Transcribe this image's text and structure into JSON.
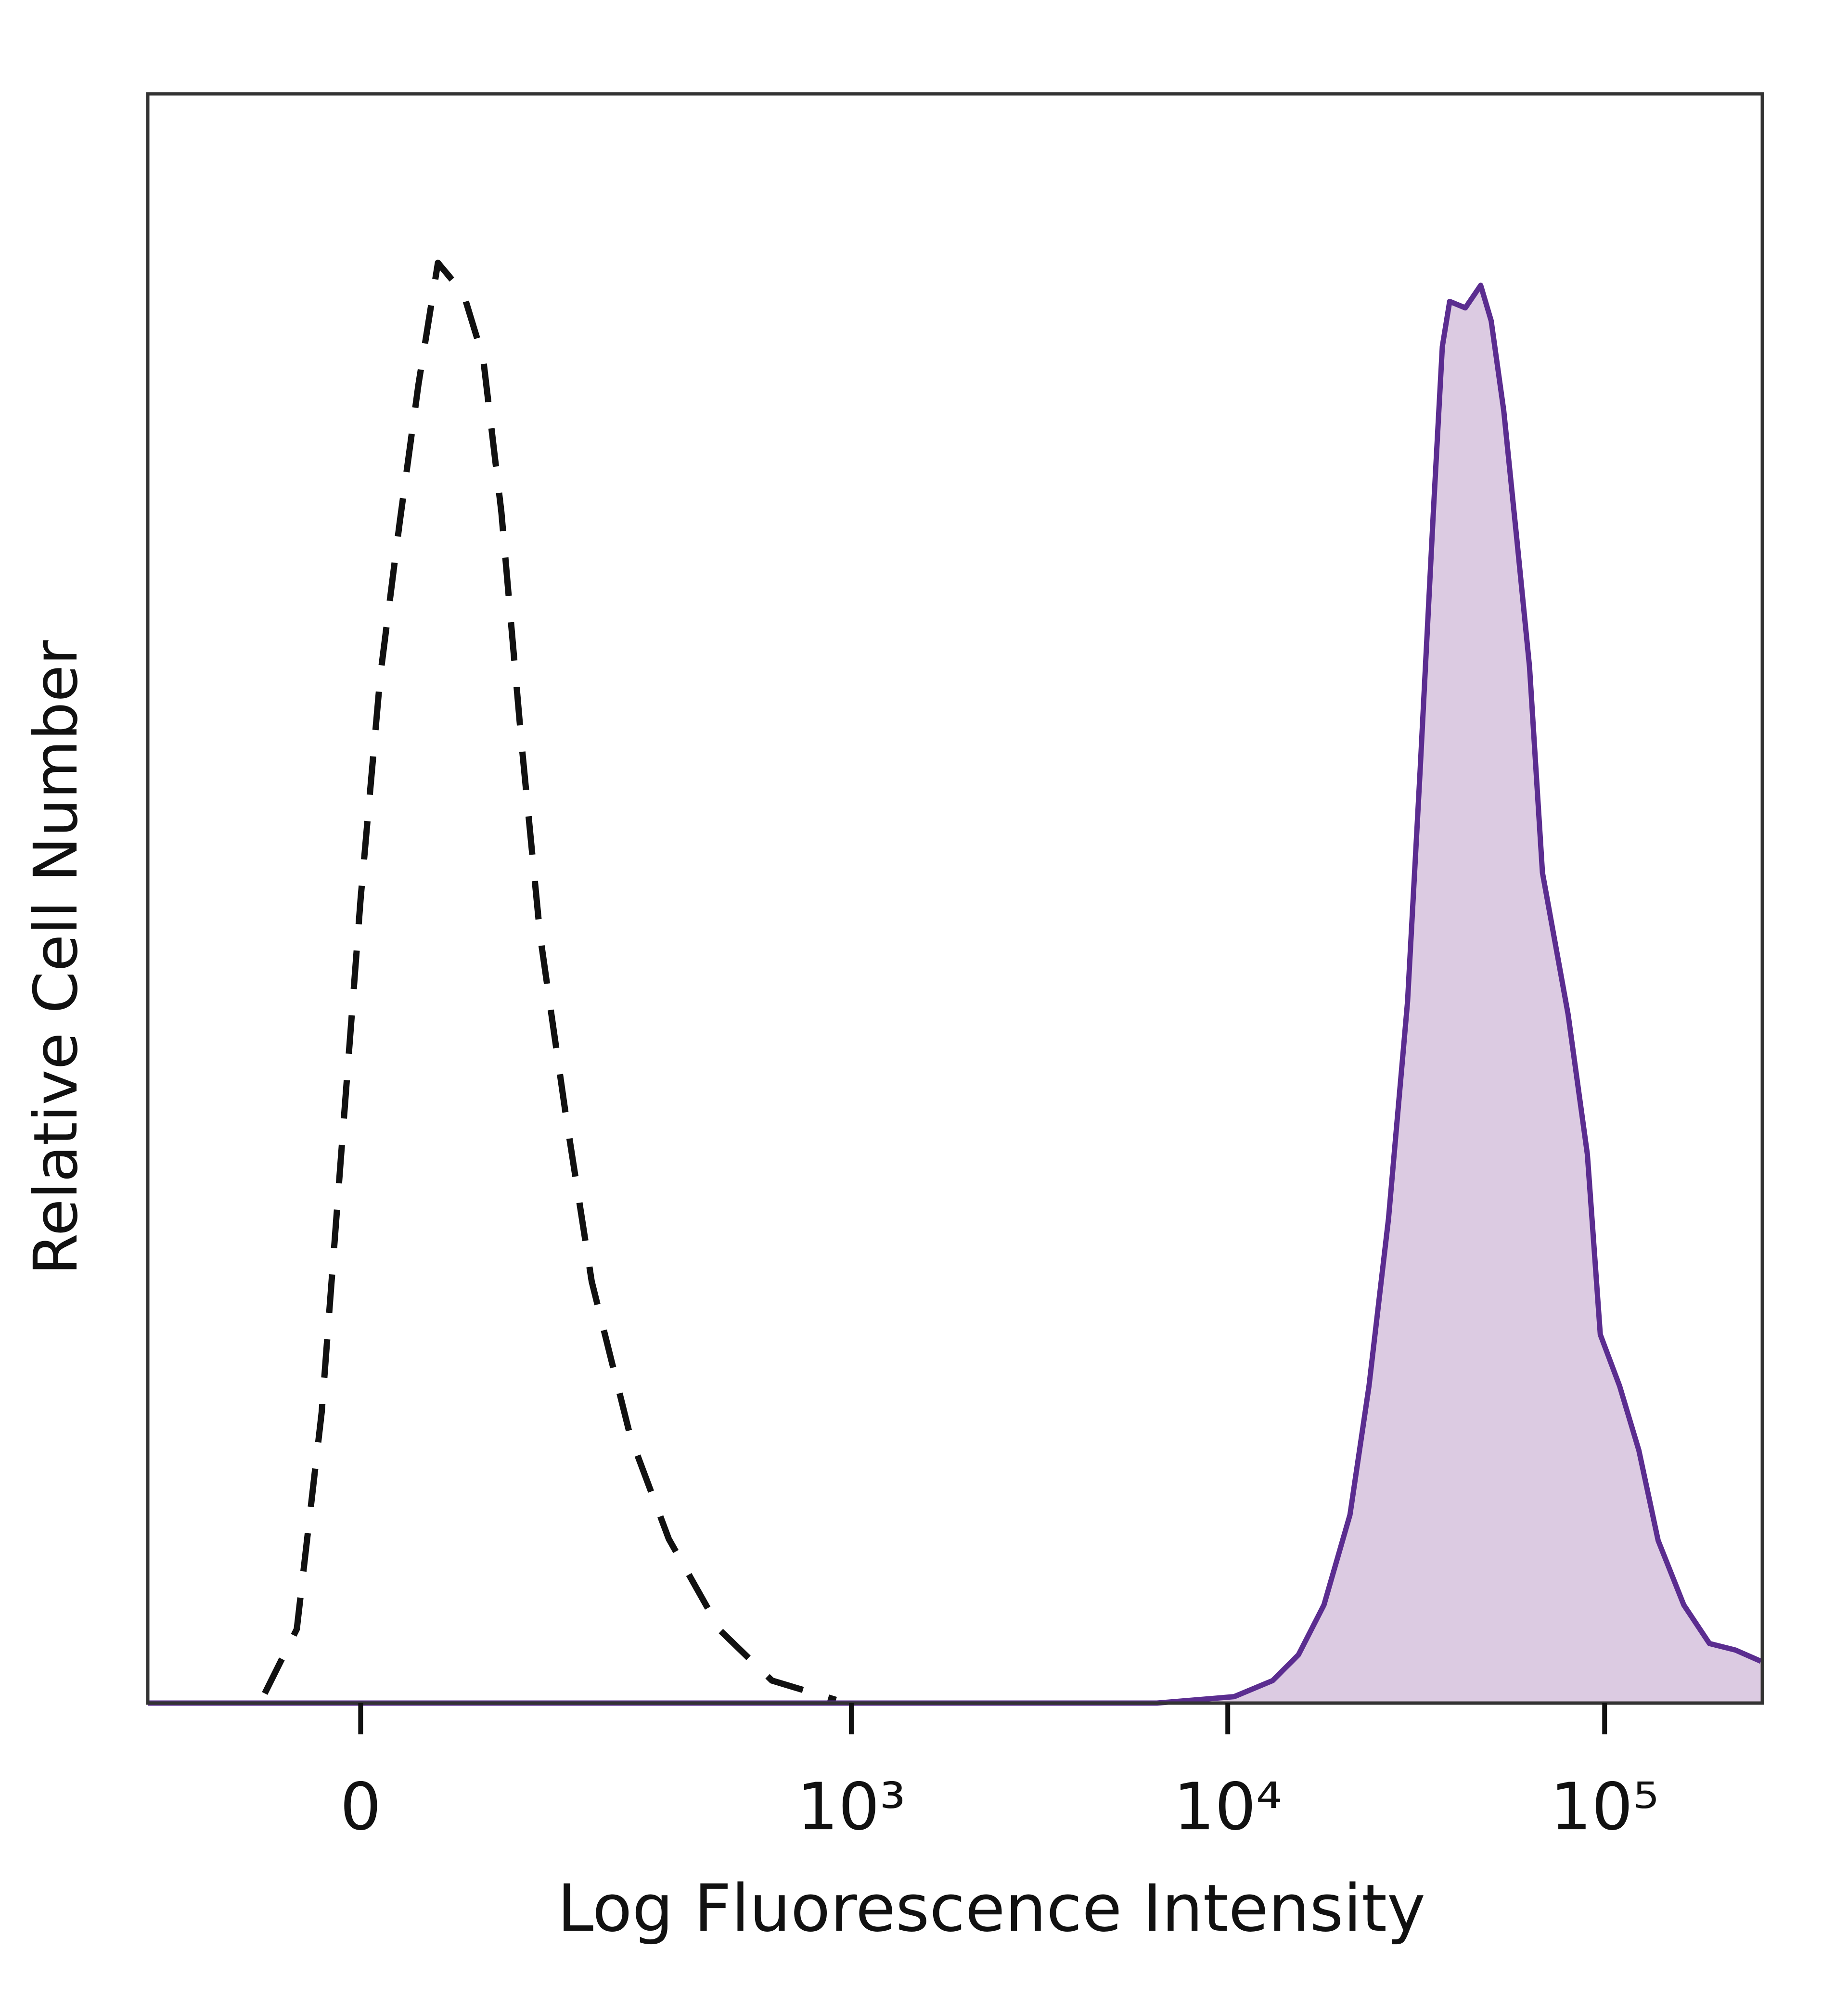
{
  "chart_data": {
    "type": "histogram-overlay",
    "x_label": "Log Fluorescence Intensity",
    "y_label": "Relative Cell Number",
    "xscale": "asinh",
    "xlim": [
      -170,
      262144
    ],
    "xticks": [
      0,
      {
        "value": 1000,
        "label": "10³"
      },
      {
        "value": 10000,
        "label": "10⁴"
      },
      {
        "value": 100000,
        "label": "10⁵"
      }
    ],
    "ylim": [
      0,
      100
    ],
    "series": [
      {
        "color": "#111111",
        "line_style": "dashed",
        "x": [
          -62,
          -40,
          -24,
          -12,
          0,
          12,
          24,
          36,
          49,
          67,
          82,
          97,
          115,
          133,
          161,
          193,
          250,
          321,
          445,
          613,
          910
        ],
        "values": [
          0.6,
          4.6,
          18.1,
          34.0,
          50.0,
          63.8,
          73.3,
          81.9,
          89.5,
          87.6,
          83.6,
          74.0,
          59.6,
          47.7,
          36.5,
          26.2,
          16.6,
          10.2,
          4.5,
          1.4,
          0.2
        ]
      },
      {
        "color": "#5b2d90",
        "fill": "#dccbe2",
        "x": [
          -170,
          0,
          6490,
          10400,
          13160,
          15400,
          18000,
          21100,
          23700,
          26700,
          30000,
          32400,
          35100,
          37100,
          38800,
          42700,
          46900,
          50000,
          54000,
          58500,
          63200,
          68400,
          80000,
          90000,
          97400,
          109600,
          123300,
          138700,
          162200,
          189800,
          222100,
          259800
        ],
        "values": [
          0,
          0,
          0,
          0.4,
          1.4,
          3.0,
          6.1,
          11.7,
          19.7,
          30.1,
          43.6,
          58.0,
          73.9,
          84.3,
          87.1,
          86.7,
          88.1,
          85.9,
          80.3,
          72.3,
          64.4,
          51.6,
          42.8,
          34.1,
          22.9,
          19.7,
          15.7,
          10.1,
          6.1,
          3.7,
          3.3,
          2.6
        ]
      }
    ]
  }
}
